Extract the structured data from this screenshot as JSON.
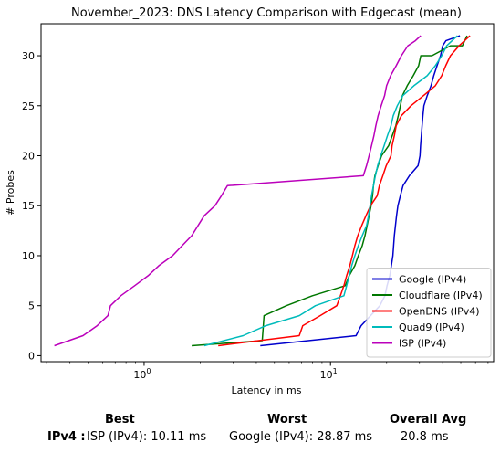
{
  "chart_data": {
    "type": "line",
    "title": "November_2023: DNS Latency Comparison with Edgecast (mean)",
    "xlabel": "Latency in ms",
    "ylabel": "# Probes",
    "xscale": "log",
    "xlim": [
      0.28,
      75
    ],
    "ylim": [
      -0.6,
      33.2
    ],
    "x_ticks": [
      {
        "value": 1,
        "label": "10^0"
      },
      {
        "value": 10,
        "label": "10^1"
      }
    ],
    "y_ticks": [
      0,
      5,
      10,
      15,
      20,
      25,
      30
    ],
    "legend_position": "lower-right",
    "series": [
      {
        "name": "Google (IPv4)",
        "color": "#0000cc",
        "x": [
          4.2,
          13.7,
          14.6,
          16.4,
          18.4,
          19.6,
          20.1,
          20.8,
          21.2,
          21.6,
          21.8,
          22.0,
          22.3,
          22.6,
          23.0,
          23.7,
          24.5,
          26.5,
          29.5,
          30.2,
          30.4,
          30.7,
          31.0,
          31.3,
          31.7,
          33.0,
          34.6,
          35.8,
          37.3,
          38.9,
          40.0,
          41.6,
          49.5
        ],
        "y": [
          1,
          2,
          3,
          4,
          5,
          6,
          7,
          8,
          9,
          10,
          11,
          12,
          13,
          14,
          15,
          16,
          17,
          18,
          19,
          20,
          21,
          22,
          23,
          24,
          25,
          26,
          27,
          28,
          29,
          30,
          31,
          31.5,
          32
        ]
      },
      {
        "name": "Cloudflare (IPv4)",
        "color": "#007700",
        "x": [
          1.8,
          4.3,
          4.4,
          5.8,
          8.0,
          12.0,
          12.6,
          13.5,
          14.1,
          14.8,
          15.3,
          15.7,
          16.1,
          16.5,
          16.8,
          17.0,
          17.3,
          18.0,
          18.8,
          20.5,
          22.4,
          23.1,
          23.7,
          24.3,
          25.8,
          27.8,
          29.7,
          30.5,
          35.0,
          44.0,
          51.0,
          54.0
        ],
        "y": [
          1,
          1.5,
          4,
          5,
          6,
          7,
          8,
          9,
          10,
          11,
          12,
          13,
          14,
          15,
          16,
          17,
          18,
          19,
          20,
          21,
          23,
          24,
          25,
          26,
          27,
          28,
          29,
          30,
          30,
          31,
          31,
          32
        ]
      },
      {
        "name": "OpenDNS (IPv4)",
        "color": "#ff0000",
        "x": [
          2.5,
          6.8,
          7.1,
          8.8,
          10.8,
          11.3,
          11.8,
          12.2,
          12.7,
          13.1,
          13.5,
          14.0,
          14.7,
          15.5,
          16.4,
          17.8,
          18.3,
          19.1,
          19.9,
          21.1,
          21.4,
          22.0,
          22.5,
          24.0,
          27.0,
          31.5,
          36.5,
          39.5,
          41.5,
          44.0,
          49.0,
          56.0
        ],
        "y": [
          1,
          2,
          3,
          4,
          5,
          6,
          7,
          8,
          9,
          10,
          11,
          12,
          13,
          14,
          15,
          16,
          17,
          18,
          19,
          20,
          21,
          22,
          23,
          24,
          25,
          26,
          27,
          28,
          29,
          30,
          31,
          32
        ]
      },
      {
        "name": "Quad9 (IPv4)",
        "color": "#00bbbb",
        "x": [
          2.1,
          3.4,
          4.5,
          6.8,
          8.3,
          11.8,
          12.2,
          12.6,
          13.0,
          13.5,
          14.1,
          14.8,
          15.6,
          16.0,
          16.3,
          16.6,
          17.0,
          17.4,
          17.9,
          18.6,
          19.4,
          20.2,
          21.1,
          21.7,
          22.8,
          24.4,
          28.0,
          33.0,
          36.5,
          39.5,
          42.0,
          48.0
        ],
        "y": [
          1,
          2,
          3,
          4,
          5,
          6,
          7,
          8,
          9,
          10,
          11,
          12,
          13,
          14,
          15,
          16,
          17,
          18,
          19,
          20,
          21,
          22,
          23,
          24,
          25,
          26,
          27,
          28,
          29,
          30,
          31,
          32
        ]
      },
      {
        "name": "ISP (IPv4)",
        "color": "#bb00bb",
        "x": [
          0.33,
          0.47,
          0.56,
          0.64,
          0.66,
          0.75,
          0.89,
          1.05,
          1.2,
          1.42,
          1.6,
          1.8,
          2.1,
          2.4,
          2.6,
          2.8,
          15.0,
          15.6,
          16.1,
          16.6,
          17.1,
          17.5,
          18.0,
          18.7,
          19.5,
          20.0,
          21.0,
          22.5,
          24.0,
          26.0,
          28.5,
          30.5
        ],
        "y": [
          1,
          2,
          3,
          4,
          5,
          6,
          7,
          8,
          9,
          10,
          11,
          12,
          14,
          15,
          16,
          17,
          18,
          19,
          20,
          21,
          22,
          23,
          24,
          25,
          26,
          27,
          28,
          29,
          30,
          31,
          31.5,
          32
        ]
      }
    ]
  },
  "summary": {
    "best_header": "Best",
    "worst_header": "Worst",
    "avg_header": "Overall Avg",
    "row_label": "IPv4 :",
    "best_value": "ISP (IPv4): 10.11 ms",
    "worst_value": "Google (IPv4): 28.87 ms",
    "avg_value": "20.8 ms"
  }
}
